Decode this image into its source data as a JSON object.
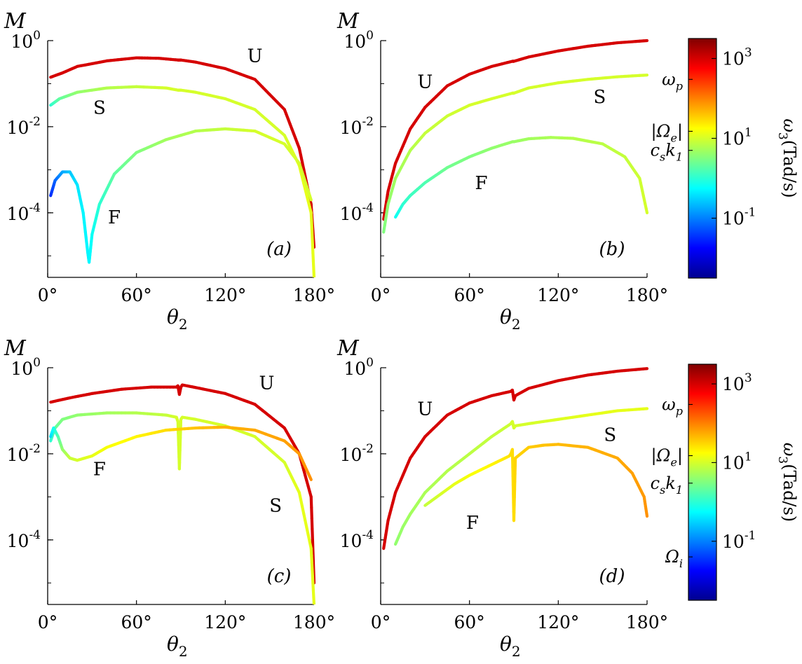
{
  "colors": {
    "jet": [
      "#00008f",
      "#0000ff",
      "#0080ff",
      "#00ffff",
      "#80ff80",
      "#ffff00",
      "#ff8000",
      "#ff0000",
      "#800000"
    ]
  },
  "colorbar": {
    "title": "ω3(Tad/s)",
    "ticks": [
      {
        "base": "10",
        "exp": "3",
        "value": 1000
      },
      {
        "base": "10",
        "exp": "1",
        "value": 10
      },
      {
        "base": "10",
        "exp": "-1",
        "value": 0.1
      }
    ],
    "range_log10": [
      -2.5,
      3.5
    ],
    "markers_top": [
      {
        "label": "ωp",
        "value": 300
      },
      {
        "label": "|Ωe|",
        "value": 15
      },
      {
        "label": "csk1",
        "value": 5
      }
    ],
    "markers_bottom": [
      {
        "label": "ωp",
        "value": 300
      },
      {
        "label": "|Ωe|",
        "value": 15
      },
      {
        "label": "csk1",
        "value": 3
      },
      {
        "label": "Ωi",
        "value": 0.04
      }
    ]
  },
  "chart_data": [
    {
      "type": "line",
      "panel": "(a)",
      "ylabel": "M",
      "xlabel": "θ2",
      "xticks": [
        "0°",
        "60°",
        "120°",
        "180°"
      ],
      "xlim": [
        0,
        180
      ],
      "yticks": [
        {
          "base": "10",
          "exp": "0"
        },
        {
          "base": "10",
          "exp": "-2"
        },
        {
          "base": "10",
          "exp": "-4"
        }
      ],
      "ylim_log10": [
        -5.5,
        0
      ],
      "series": [
        {
          "name": "U",
          "label": "U",
          "label_at": [
            140,
            -0.35
          ],
          "x": [
            2,
            10,
            20,
            40,
            60,
            75,
            88,
            89,
            90,
            100,
            120,
            140,
            160,
            170,
            178,
            180
          ],
          "logy": [
            -0.85,
            -0.75,
            -0.6,
            -0.47,
            -0.4,
            -0.41,
            -0.45,
            -0.45,
            -0.45,
            -0.5,
            -0.65,
            -0.9,
            -1.6,
            -2.5,
            -3.8,
            -4.8
          ],
          "logw": [
            3,
            3,
            3,
            3,
            3,
            3,
            3,
            3,
            3,
            3,
            3,
            3,
            3,
            3,
            3,
            3
          ]
        },
        {
          "name": "S",
          "label": "S",
          "label_at": [
            35,
            -1.55
          ],
          "x": [
            2,
            8,
            20,
            40,
            60,
            80,
            88,
            90,
            100,
            120,
            140,
            160,
            170,
            178,
            180
          ],
          "logy": [
            -1.5,
            -1.35,
            -1.2,
            -1.1,
            -1.07,
            -1.1,
            -1.15,
            -1.15,
            -1.2,
            -1.35,
            -1.6,
            -2.2,
            -2.9,
            -4.0,
            -5.5
          ],
          "logw": [
            0,
            0.3,
            0.6,
            0.8,
            0.9,
            1.0,
            1.0,
            1.0,
            1.0,
            1.0,
            1.0,
            1.0,
            1.1,
            1.1,
            1.1
          ]
        },
        {
          "name": "F",
          "label": "F",
          "label_at": [
            45,
            -4.1
          ],
          "x": [
            2,
            5,
            10,
            15,
            20,
            24,
            27,
            28,
            30,
            35,
            45,
            60,
            80,
            100,
            120,
            140,
            160,
            170,
            178
          ],
          "logy": [
            -3.6,
            -3.25,
            -3.05,
            -3.05,
            -3.35,
            -4.0,
            -4.9,
            -5.15,
            -4.5,
            -3.8,
            -3.1,
            -2.6,
            -2.3,
            -2.1,
            -2.05,
            -2.1,
            -2.4,
            -2.85,
            -3.7
          ],
          "logw": [
            -1.5,
            -1.2,
            -0.8,
            -0.6,
            -0.4,
            -0.3,
            -0.3,
            -0.3,
            -0.2,
            0.0,
            0.3,
            0.5,
            0.7,
            0.8,
            0.9,
            1.0,
            1.0,
            1.0,
            1.0
          ]
        }
      ]
    },
    {
      "type": "line",
      "panel": "(b)",
      "ylabel": "M",
      "xlabel": "θ2",
      "xticks": [
        "0°",
        "60°",
        "120°",
        "180°"
      ],
      "xlim": [
        0,
        180
      ],
      "yticks": [
        {
          "base": "10",
          "exp": "0"
        },
        {
          "base": "10",
          "exp": "-2"
        },
        {
          "base": "10",
          "exp": "-4"
        }
      ],
      "ylim_log10": [
        -5.5,
        0
      ],
      "series": [
        {
          "name": "U",
          "label": "U",
          "label_at": [
            30,
            -0.95
          ],
          "x": [
            2,
            5,
            10,
            20,
            30,
            45,
            60,
            75,
            89,
            90,
            100,
            120,
            140,
            160,
            180
          ],
          "logy": [
            -4.15,
            -3.5,
            -2.85,
            -2.05,
            -1.55,
            -1.05,
            -0.78,
            -0.6,
            -0.48,
            -0.48,
            -0.38,
            -0.24,
            -0.13,
            -0.05,
            0
          ],
          "logw": [
            3,
            3,
            3,
            3,
            3,
            3,
            3,
            3,
            3,
            3,
            3,
            3,
            3,
            3,
            3
          ]
        },
        {
          "name": "S",
          "label": "S",
          "label_at": [
            148,
            -1.3
          ],
          "x": [
            2,
            5,
            10,
            20,
            30,
            45,
            60,
            75,
            89,
            90,
            100,
            120,
            140,
            160,
            180
          ],
          "logy": [
            -4.45,
            -3.8,
            -3.2,
            -2.55,
            -2.15,
            -1.75,
            -1.5,
            -1.35,
            -1.22,
            -1.22,
            -1.1,
            -0.98,
            -0.9,
            -0.84,
            -0.8
          ],
          "logw": [
            0.5,
            0.6,
            0.7,
            0.8,
            0.9,
            0.95,
            1.0,
            1.0,
            1.0,
            1.0,
            1.0,
            1.0,
            1.0,
            1.0,
            1.0
          ]
        },
        {
          "name": "F",
          "label": "F",
          "label_at": [
            68,
            -3.3
          ],
          "x": [
            10,
            15,
            20,
            30,
            45,
            60,
            75,
            89,
            90,
            100,
            115,
            130,
            150,
            165,
            175,
            180
          ],
          "logy": [
            -4.1,
            -3.8,
            -3.6,
            -3.3,
            -2.95,
            -2.7,
            -2.5,
            -2.35,
            -2.35,
            -2.28,
            -2.25,
            -2.27,
            -2.4,
            -2.7,
            -3.2,
            -4.0
          ],
          "logw": [
            -0.2,
            0.0,
            0.1,
            0.2,
            0.4,
            0.5,
            0.6,
            0.65,
            0.65,
            0.7,
            0.75,
            0.8,
            0.85,
            0.9,
            0.95,
            1.0
          ]
        }
      ]
    },
    {
      "type": "line",
      "panel": "(c)",
      "ylabel": "M",
      "xlabel": "θ2",
      "xticks": [
        "0°",
        "60°",
        "120°",
        "180°"
      ],
      "xlim": [
        0,
        180
      ],
      "yticks": [
        {
          "base": "10",
          "exp": "0"
        },
        {
          "base": "10",
          "exp": "-2"
        },
        {
          "base": "10",
          "exp": "-4"
        }
      ],
      "ylim_log10": [
        -5.5,
        0
      ],
      "series": [
        {
          "name": "U",
          "label": "U",
          "label_at": [
            148,
            -0.35
          ],
          "x": [
            2,
            15,
            30,
            50,
            70,
            87,
            88,
            89,
            90,
            91,
            100,
            120,
            140,
            160,
            170,
            178,
            180
          ],
          "logy": [
            -0.8,
            -0.7,
            -0.6,
            -0.5,
            -0.45,
            -0.45,
            -0.42,
            -0.62,
            -0.45,
            -0.4,
            -0.46,
            -0.6,
            -0.85,
            -1.4,
            -2.0,
            -3.0,
            -5.0
          ],
          "logw": [
            3,
            3,
            3,
            3,
            3,
            3,
            3,
            3,
            3,
            3,
            3,
            3,
            3,
            3,
            3,
            3,
            3
          ]
        },
        {
          "name": "S",
          "label": "S",
          "label_at": [
            154,
            -3.2
          ],
          "x": [
            2,
            5,
            10,
            20,
            40,
            60,
            80,
            87,
            88,
            89,
            90,
            91,
            100,
            120,
            140,
            160,
            170,
            178,
            180
          ],
          "logy": [
            -1.7,
            -1.4,
            -1.2,
            -1.1,
            -1.05,
            -1.05,
            -1.1,
            -1.15,
            -1.25,
            -2.35,
            -1.2,
            -1.15,
            -1.2,
            -1.35,
            -1.6,
            -2.2,
            -2.9,
            -4.2,
            -5.5
          ],
          "logw": [
            0.0,
            0.3,
            0.5,
            0.6,
            0.7,
            0.8,
            0.9,
            1.0,
            1.0,
            1.0,
            1.0,
            1.0,
            1.0,
            1.0,
            1.0,
            1.0,
            1.1,
            1.1,
            1.1
          ]
        },
        {
          "name": "F",
          "label": "F",
          "label_at": [
            35,
            -2.35
          ],
          "x": [
            2,
            4,
            7,
            10,
            15,
            20,
            30,
            40,
            60,
            80,
            100,
            120,
            140,
            160,
            170,
            178
          ],
          "logy": [
            -1.6,
            -1.4,
            -1.6,
            -1.9,
            -2.1,
            -2.15,
            -2.05,
            -1.85,
            -1.6,
            -1.45,
            -1.4,
            -1.38,
            -1.45,
            -1.7,
            -2.0,
            -2.6
          ],
          "logw": [
            -0.5,
            -0.2,
            0.2,
            0.6,
            0.9,
            1.0,
            1.1,
            1.2,
            1.3,
            1.45,
            1.6,
            1.7,
            1.75,
            1.8,
            1.85,
            1.9
          ]
        }
      ]
    },
    {
      "type": "line",
      "panel": "(d)",
      "ylabel": "M",
      "xlabel": "θ2",
      "xticks": [
        "0°",
        "60°",
        "120°",
        "180°"
      ],
      "xlim": [
        0,
        180
      ],
      "yticks": [
        {
          "base": "10",
          "exp": "0"
        },
        {
          "base": "10",
          "exp": "-2"
        },
        {
          "base": "10",
          "exp": "-4"
        }
      ],
      "ylim_log10": [
        -5.5,
        0
      ],
      "series": [
        {
          "name": "U",
          "label": "U",
          "label_at": [
            30,
            -0.95
          ],
          "x": [
            2,
            5,
            10,
            20,
            30,
            45,
            60,
            75,
            88,
            89,
            90,
            91,
            100,
            120,
            140,
            160,
            180
          ],
          "logy": [
            -4.2,
            -3.55,
            -2.9,
            -2.1,
            -1.6,
            -1.1,
            -0.82,
            -0.65,
            -0.55,
            -0.52,
            -0.75,
            -0.65,
            -0.48,
            -0.3,
            -0.17,
            -0.08,
            -0.02
          ],
          "logw": [
            3,
            3,
            3,
            3,
            3,
            3,
            3,
            3,
            3,
            3,
            3,
            3,
            3,
            3,
            3,
            3,
            3
          ]
        },
        {
          "name": "S",
          "label": "S",
          "label_at": [
            155,
            -1.55
          ],
          "x": [
            10,
            15,
            20,
            30,
            45,
            60,
            75,
            88,
            89,
            90,
            91,
            100,
            120,
            140,
            160,
            180
          ],
          "logy": [
            -4.1,
            -3.7,
            -3.4,
            -2.9,
            -2.4,
            -2.0,
            -1.6,
            -1.3,
            -1.25,
            -1.4,
            -1.35,
            -1.3,
            -1.2,
            -1.1,
            -1.0,
            -0.95
          ],
          "logw": [
            0.6,
            0.65,
            0.7,
            0.75,
            0.8,
            0.85,
            0.9,
            0.95,
            1.0,
            1.0,
            1.0,
            1.0,
            1.05,
            1.1,
            1.1,
            1.1
          ]
        },
        {
          "name": "F",
          "label": "F",
          "label_at": [
            62,
            -3.6
          ],
          "x": [
            30,
            40,
            50,
            60,
            75,
            87,
            88,
            89,
            90,
            91,
            100,
            110,
            120,
            140,
            160,
            170,
            178,
            180
          ],
          "logy": [
            -3.2,
            -2.95,
            -2.7,
            -2.5,
            -2.25,
            -2.05,
            -2.0,
            -1.9,
            -3.55,
            -2.1,
            -1.85,
            -1.8,
            -1.78,
            -1.85,
            -2.1,
            -2.45,
            -3.0,
            -3.45
          ],
          "logw": [
            0.9,
            1.0,
            1.1,
            1.2,
            1.3,
            1.4,
            1.45,
            1.45,
            1.45,
            1.5,
            1.55,
            1.6,
            1.65,
            1.7,
            1.75,
            1.8,
            1.85,
            1.9
          ]
        }
      ]
    }
  ]
}
